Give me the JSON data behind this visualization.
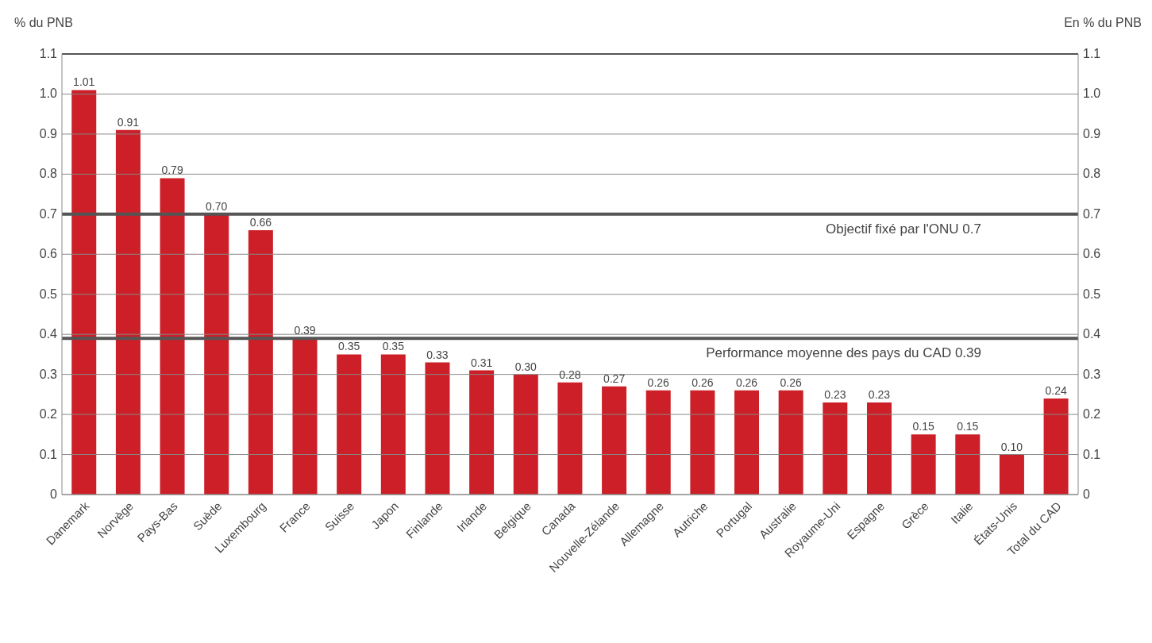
{
  "chart_data": {
    "type": "bar",
    "ylabel": "% du PNB",
    "y2label": "En % du PNB",
    "categories": [
      "Danemark",
      "Norvège",
      "Pays-Bas",
      "Suède",
      "Luxembourg",
      "France",
      "Suisse",
      "Japon",
      "Finlande",
      "Irlande",
      "Belgique",
      "Canada",
      "Nouvelle-Zélande",
      "Allemagne",
      "Autriche",
      "Portugal",
      "Australie",
      "Royaume-Uni",
      "Espagne",
      "Grèce",
      "Italie",
      "États-Unis",
      "Total du CAD"
    ],
    "values": [
      1.01,
      0.91,
      0.79,
      0.7,
      0.66,
      0.39,
      0.35,
      0.35,
      0.33,
      0.31,
      0.3,
      0.28,
      0.27,
      0.26,
      0.26,
      0.26,
      0.26,
      0.23,
      0.23,
      0.15,
      0.15,
      0.1,
      0.24
    ],
    "value_labels": [
      "1.01",
      "0.91",
      "0.79",
      "0.70",
      "0.66",
      "0.39",
      "0.35",
      "0.35",
      "0.33",
      "0.31",
      "0.30",
      "0.28",
      "0.27",
      "0.26",
      "0.26",
      "0.26",
      "0.26",
      "0.23",
      "0.23",
      "0.15",
      "0.15",
      "0.10",
      "0.24"
    ],
    "color": "#cc1f27",
    "ylim": [
      0,
      1.1
    ],
    "yticks": [
      0,
      0.1,
      0.2,
      0.3,
      0.4,
      0.5,
      0.6,
      0.7,
      0.8,
      0.9,
      {
        "value": 1,
        "label": "1.0"
      },
      1.1
    ],
    "y2lim": [
      0,
      1.1
    ],
    "y2ticks": [
      0,
      0.1,
      0.2,
      0.3,
      0.4,
      0.5,
      0.6,
      0.7,
      0.8,
      0.9,
      {
        "value": 1,
        "label": "1.0"
      },
      1.1
    ],
    "ref_lines": [
      {
        "axis": "y",
        "value": 0.7,
        "label": "Objectif fixé par l'ONU 0.7",
        "color": "#555555"
      },
      {
        "axis": "y",
        "value": 0.39,
        "label": "Performance moyenne des pays du CAD 0.39",
        "color": "#555555"
      }
    ],
    "grid": "y"
  }
}
